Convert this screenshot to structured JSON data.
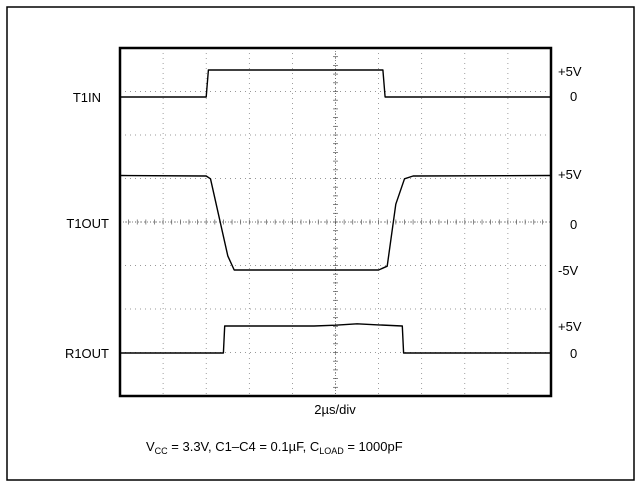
{
  "chart_data": {
    "type": "line",
    "title": "",
    "xlabel": "2µs/div",
    "ylabel": "",
    "x_divisions": 10,
    "y_divisions": 8,
    "grid": true,
    "caption": {
      "vcc_main": "V",
      "vcc_sub": "CC",
      "mid": " = 3.3V, C1–C4 = 0.1µF, C",
      "load_sub": "LOAD",
      "end": " = 1000pF"
    },
    "channels": [
      {
        "name": "T1IN",
        "scale_labels": [
          "+5V",
          "0"
        ],
        "low": 0,
        "high": 5,
        "points": [
          [
            0,
            0
          ],
          [
            2.0,
            0
          ],
          [
            2.05,
            5
          ],
          [
            6.1,
            5
          ],
          [
            6.15,
            0
          ],
          [
            10,
            0
          ]
        ]
      },
      {
        "name": "T1OUT",
        "scale_labels": [
          "+5V",
          "0",
          "-5V"
        ],
        "low": -5,
        "high": 5,
        "points": [
          [
            0,
            5.05
          ],
          [
            2.0,
            5.0
          ],
          [
            2.1,
            4.7
          ],
          [
            2.5,
            -3.5
          ],
          [
            2.65,
            -5.0
          ],
          [
            6.0,
            -5.0
          ],
          [
            6.2,
            -4.6
          ],
          [
            6.4,
            2.0
          ],
          [
            6.6,
            4.7
          ],
          [
            6.8,
            5.0
          ],
          [
            10,
            5.05
          ]
        ]
      },
      {
        "name": "R1OUT",
        "scale_labels": [
          "+5V",
          "0"
        ],
        "low": 0,
        "high": 5,
        "points": [
          [
            0,
            0
          ],
          [
            2.4,
            0
          ],
          [
            2.43,
            5
          ],
          [
            4.5,
            5
          ],
          [
            5.0,
            5.15
          ],
          [
            5.5,
            5.4
          ],
          [
            6.0,
            5.2
          ],
          [
            6.55,
            5
          ],
          [
            6.58,
            0
          ],
          [
            10,
            0
          ]
        ]
      }
    ]
  }
}
